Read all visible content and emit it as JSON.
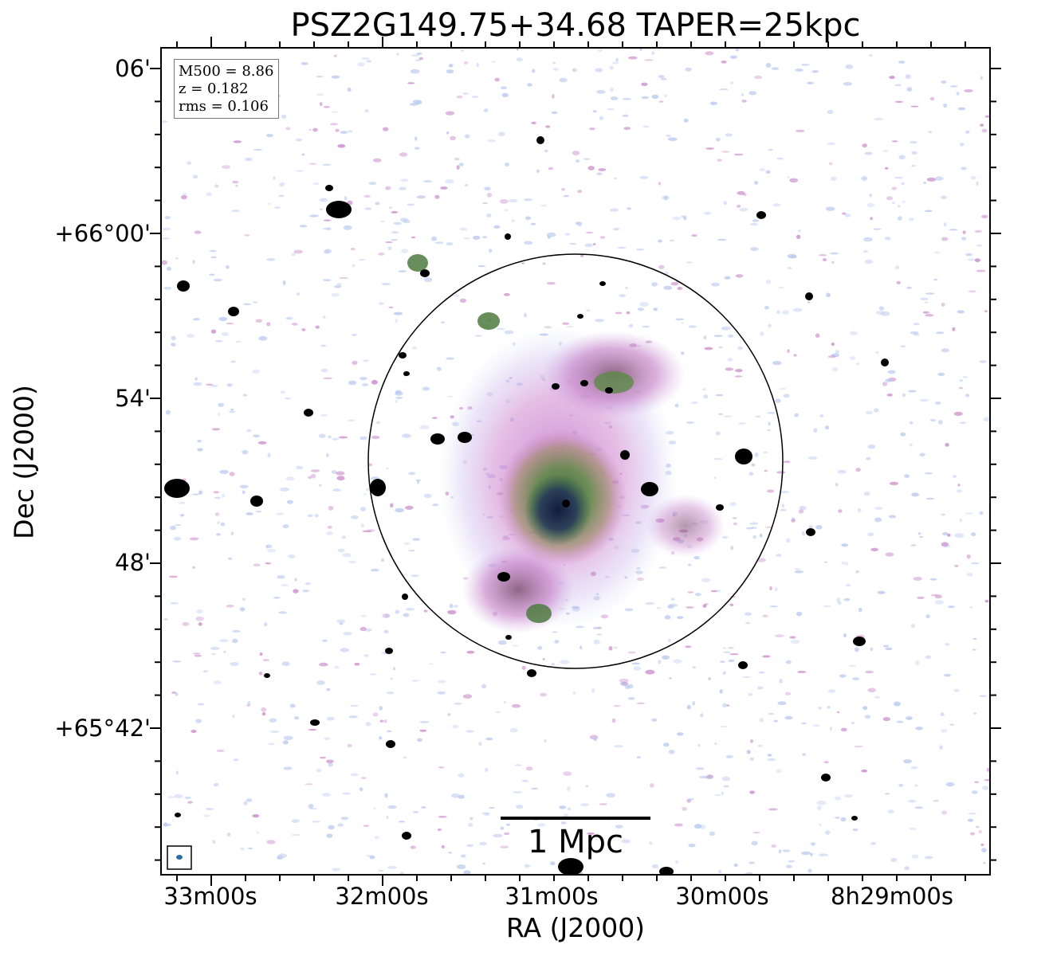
{
  "figure": {
    "title": "PSZ2G149.75+34.68 TAPER=25kpc",
    "xlabel": "RA (J2000)",
    "ylabel": "Dec (J2000)",
    "x_ticks": [
      "33m00s",
      "32m00s",
      "31m00s",
      "30m00s",
      "8h29m00s"
    ],
    "y_ticks": [
      "06'",
      "+66°00'",
      "54'",
      "48'",
      "+65°42'"
    ],
    "info": {
      "m500": "M500 = 8.86",
      "z": "z = 0.182",
      "rms": "rms = 0.106"
    },
    "scalebar_label": "1 Mpc",
    "colors": {
      "background": "#ffffff",
      "noise_light": "#b8c8ee",
      "noise_pink": "#c888c8",
      "emission_green": "#4e7a3c",
      "emission_dark": "#1e2c4e",
      "compact_source": "#000000"
    }
  }
}
